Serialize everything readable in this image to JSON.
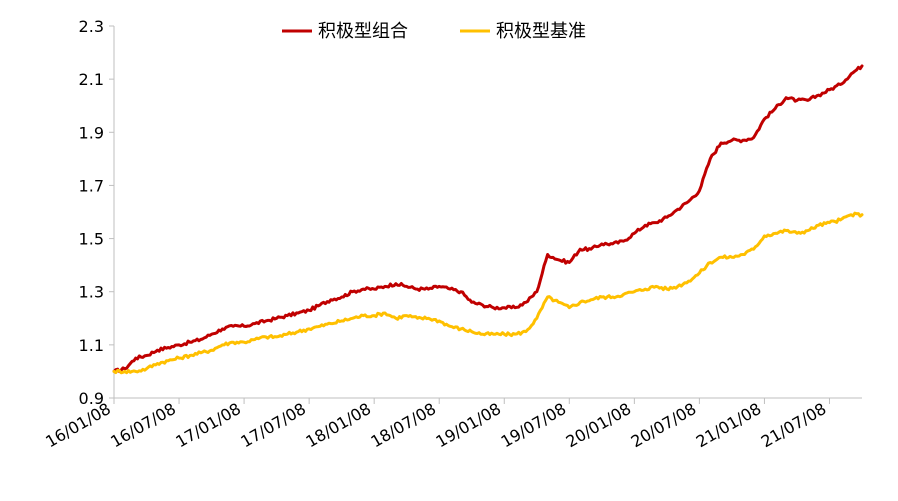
{
  "chart_data": {
    "type": "line",
    "title": "",
    "xlabel": "",
    "ylabel": "",
    "ylim": [
      0.9,
      2.3
    ],
    "yticks": [
      "0.9",
      "1.1",
      "1.3",
      "1.5",
      "1.7",
      "1.9",
      "2.1",
      "2.3"
    ],
    "xticks": [
      "16/01/08",
      "16/07/08",
      "17/01/08",
      "17/07/08",
      "18/01/08",
      "18/07/08",
      "19/01/08",
      "19/07/08",
      "20/01/08",
      "20/07/08",
      "21/01/08",
      "21/07/08"
    ],
    "grid": false,
    "legend_position": "top-center",
    "x": [
      "16/01/08",
      "16/02/08",
      "16/03/08",
      "16/04/08",
      "16/05/08",
      "16/06/08",
      "16/07/08",
      "16/08/08",
      "16/09/08",
      "16/10/08",
      "16/11/08",
      "16/12/08",
      "17/01/08",
      "17/02/08",
      "17/03/08",
      "17/04/08",
      "17/05/08",
      "17/06/08",
      "17/07/08",
      "17/08/08",
      "17/09/08",
      "17/10/08",
      "17/11/08",
      "17/12/08",
      "18/01/08",
      "18/02/08",
      "18/03/08",
      "18/04/08",
      "18/05/08",
      "18/06/08",
      "18/07/08",
      "18/08/08",
      "18/09/08",
      "18/10/08",
      "18/11/08",
      "18/12/08",
      "19/01/08",
      "19/02/08",
      "19/03/08",
      "19/04/08",
      "19/05/08",
      "19/06/08",
      "19/07/08",
      "19/08/08",
      "19/09/08",
      "19/10/08",
      "19/11/08",
      "19/12/08",
      "20/01/08",
      "20/02/08",
      "20/03/08",
      "20/04/08",
      "20/05/08",
      "20/06/08",
      "20/07/08",
      "20/08/08",
      "20/09/08",
      "20/10/08",
      "20/11/08",
      "20/12/08",
      "21/01/08",
      "21/02/08",
      "21/03/08",
      "21/04/08",
      "21/05/08",
      "21/06/08",
      "21/07/08",
      "21/08/08",
      "21/09/08",
      "21/10/08"
    ],
    "series": [
      {
        "name": "积极型组合",
        "color": "#c00000",
        "values": [
          1.0,
          1.01,
          1.05,
          1.06,
          1.08,
          1.09,
          1.1,
          1.11,
          1.12,
          1.14,
          1.16,
          1.17,
          1.17,
          1.18,
          1.19,
          1.2,
          1.21,
          1.22,
          1.23,
          1.25,
          1.27,
          1.28,
          1.3,
          1.31,
          1.31,
          1.32,
          1.33,
          1.32,
          1.31,
          1.31,
          1.32,
          1.31,
          1.3,
          1.26,
          1.25,
          1.24,
          1.24,
          1.24,
          1.26,
          1.3,
          1.44,
          1.42,
          1.41,
          1.46,
          1.46,
          1.48,
          1.48,
          1.49,
          1.52,
          1.55,
          1.56,
          1.58,
          1.61,
          1.64,
          1.68,
          1.8,
          1.86,
          1.87,
          1.87,
          1.88,
          1.95,
          1.99,
          2.03,
          2.02,
          2.02,
          2.04,
          2.06,
          2.08,
          2.12,
          2.15
        ]
      },
      {
        "name": "积极型基准",
        "color": "#ffc000",
        "values": [
          1.0,
          1.0,
          1.0,
          1.01,
          1.03,
          1.04,
          1.05,
          1.06,
          1.07,
          1.08,
          1.1,
          1.11,
          1.11,
          1.12,
          1.13,
          1.13,
          1.14,
          1.15,
          1.16,
          1.17,
          1.18,
          1.19,
          1.2,
          1.21,
          1.21,
          1.22,
          1.2,
          1.21,
          1.2,
          1.2,
          1.19,
          1.17,
          1.16,
          1.15,
          1.14,
          1.14,
          1.14,
          1.14,
          1.15,
          1.2,
          1.28,
          1.26,
          1.24,
          1.26,
          1.27,
          1.28,
          1.28,
          1.29,
          1.3,
          1.31,
          1.32,
          1.31,
          1.32,
          1.34,
          1.37,
          1.41,
          1.43,
          1.43,
          1.44,
          1.46,
          1.51,
          1.52,
          1.53,
          1.52,
          1.53,
          1.55,
          1.56,
          1.57,
          1.59,
          1.59
        ]
      }
    ]
  }
}
